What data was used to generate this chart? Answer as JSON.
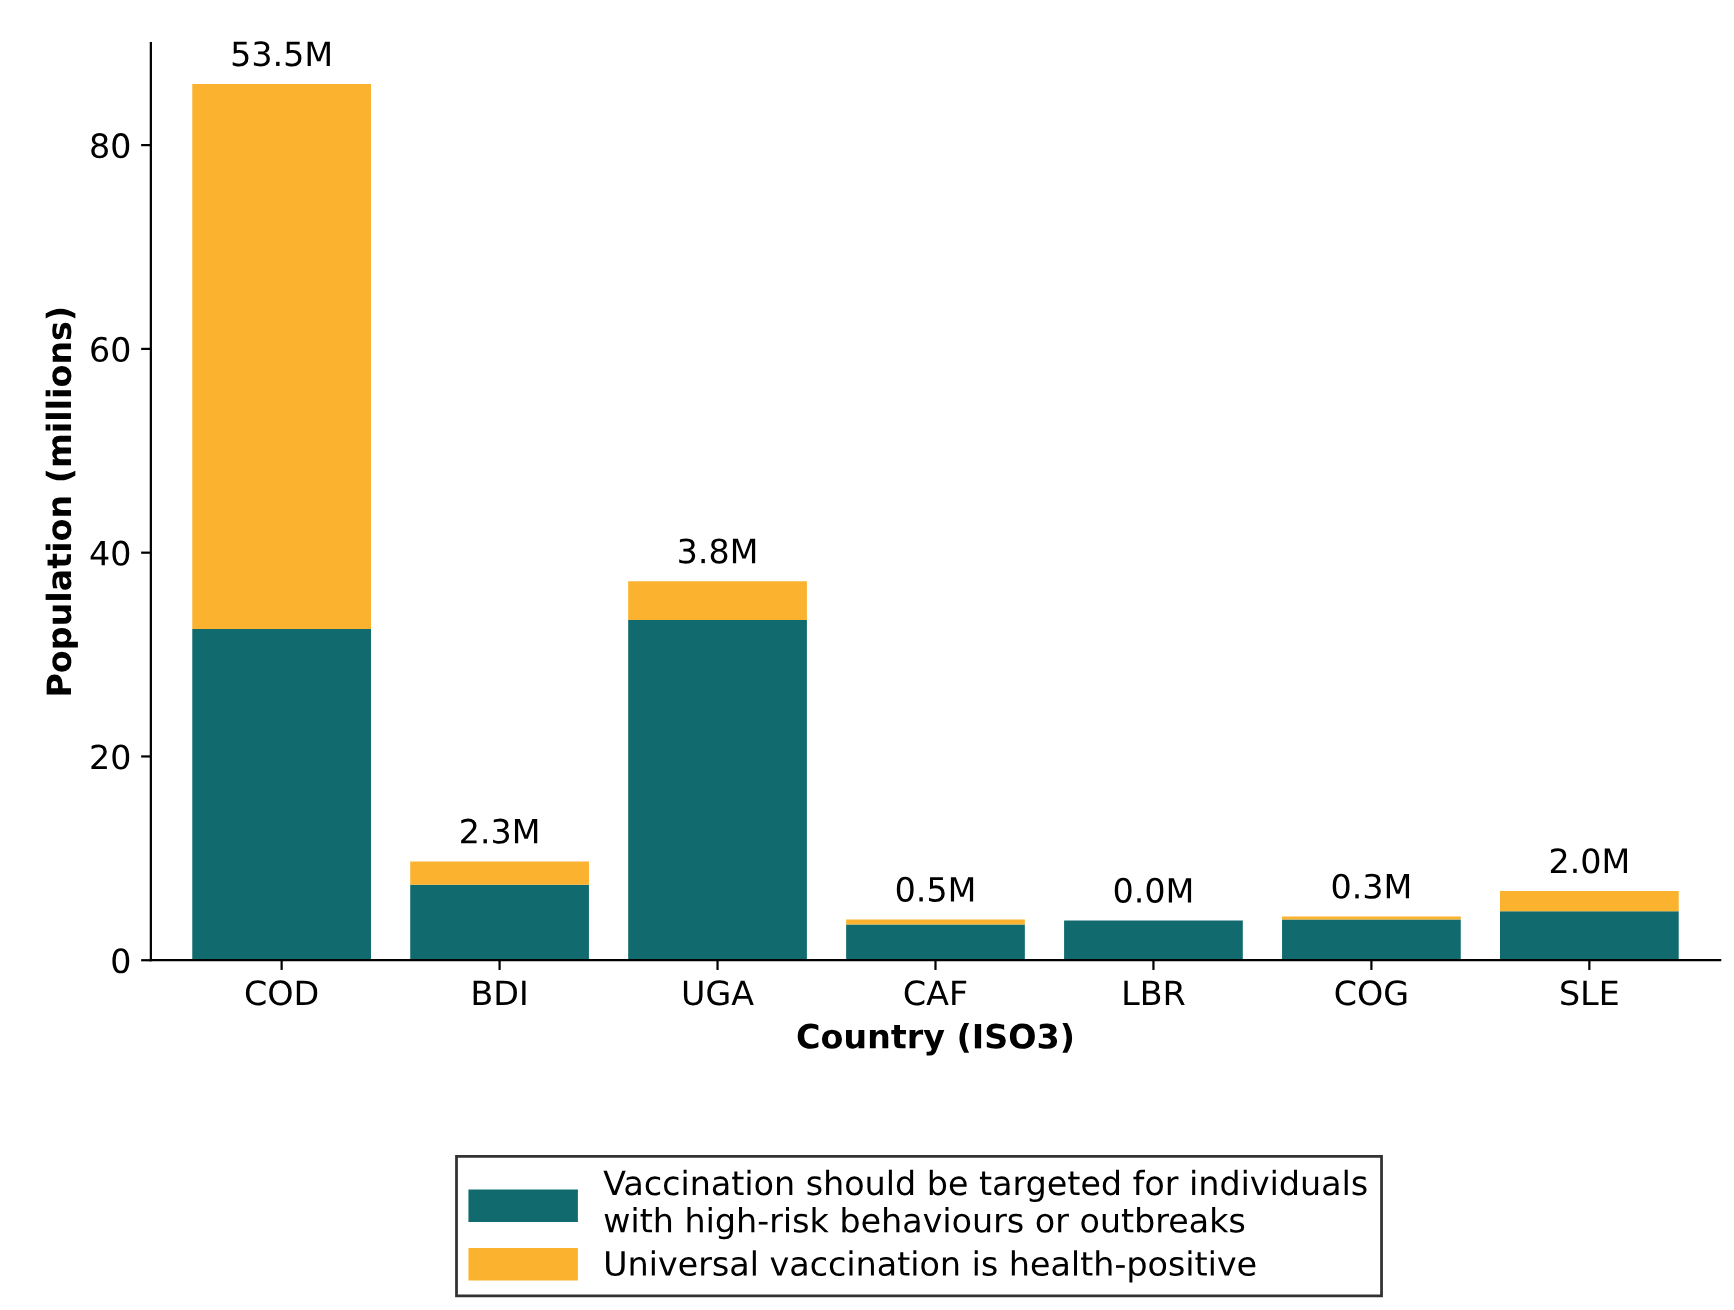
{
  "chart_data": {
    "type": "bar",
    "stacked": true,
    "xlabel": "Country (ISO3)",
    "ylabel": "Population (millions)",
    "categories": [
      "COD",
      "BDI",
      "UGA",
      "CAF",
      "LBR",
      "COG",
      "SLE"
    ],
    "series": [
      {
        "name": "Vaccination should be targeted for individuals\nwith high-risk behaviours or outbreaks",
        "color": "#116b6e",
        "values": [
          32.5,
          7.4,
          33.4,
          3.5,
          3.9,
          4.0,
          4.8
        ]
      },
      {
        "name": "Universal vaccination is health-positive",
        "color": "#fbb22f",
        "values": [
          53.5,
          2.3,
          3.8,
          0.5,
          0.0,
          0.3,
          2.0
        ],
        "value_labels": [
          "53.5M",
          "2.3M",
          "3.8M",
          "0.5M",
          "0.0M",
          "0.3M",
          "2.0M"
        ]
      }
    ],
    "ylim": [
      0,
      90
    ],
    "yticks": [
      0,
      20,
      40,
      60,
      80
    ],
    "grid": false,
    "legend": "bottom"
  }
}
